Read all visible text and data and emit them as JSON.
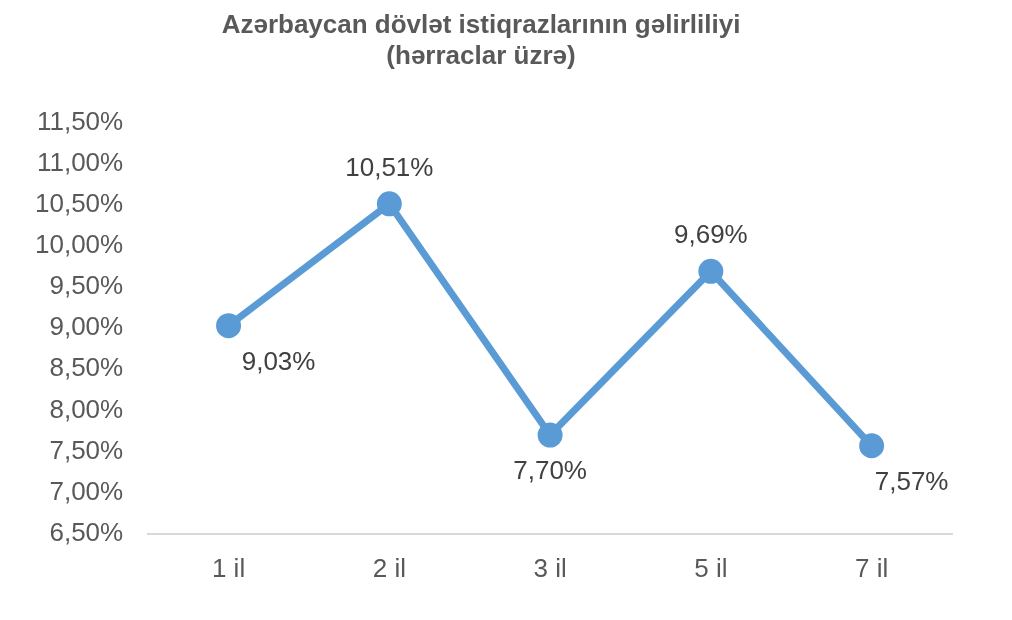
{
  "chart_data": {
    "type": "line",
    "title": "Azərbaycan dövlət istiqrazlarının gəlirliliyi\n(hərraclar üzrə)",
    "categories": [
      "1 il",
      "2 il",
      "3 il",
      "5 il",
      "7 il"
    ],
    "series": [
      {
        "color": "#5b9bd5",
        "values": [
          9.03,
          10.51,
          7.7,
          9.69,
          7.57
        ],
        "value_labels": [
          "9,03%",
          "10,51%",
          "7,70%",
          "9,69%",
          "7,57%"
        ]
      }
    ],
    "ylim": [
      6.5,
      11.5
    ],
    "yticks": [
      {
        "value": 6.5,
        "label": "6,50%"
      },
      {
        "value": 7,
        "label": "7,00%"
      },
      {
        "value": 7.5,
        "label": "7,50%"
      },
      {
        "value": 8,
        "label": "8,00%"
      },
      {
        "value": 8.5,
        "label": "8,50%"
      },
      {
        "value": 9,
        "label": "9,00%"
      },
      {
        "value": 9.5,
        "label": "9,50%"
      },
      {
        "value": 10,
        "label": "10,00%"
      },
      {
        "value": 10.5,
        "label": "10,50%"
      },
      {
        "value": 11,
        "label": "11,00%"
      },
      {
        "value": 11.5,
        "label": "11,50%"
      }
    ],
    "grid": false,
    "legend": false,
    "marker": "circle",
    "line_style": "solid"
  }
}
